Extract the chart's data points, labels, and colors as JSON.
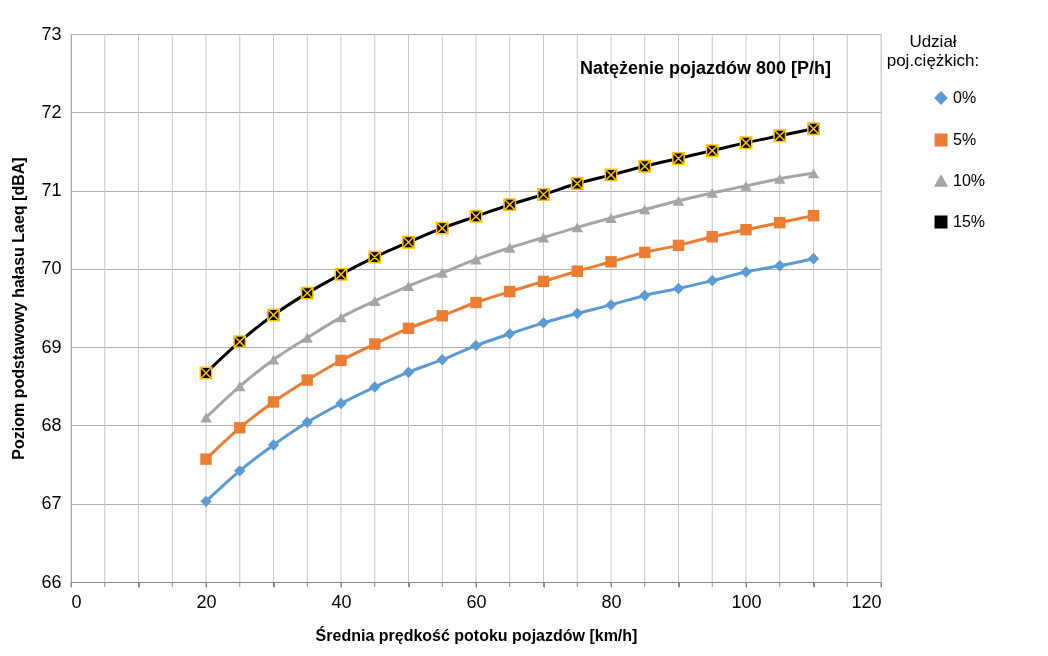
{
  "chart_data": {
    "type": "line",
    "title": "Natężenie pojazdów 800 [P/h]",
    "xlabel": "Średnia prędkość potoku pojazdów [km/h]",
    "ylabel": "Poziom podstawowy hałasu Laeq [dBA]",
    "legend_title": "Udział poj.ciężkich:",
    "legend": "right",
    "x": [
      20,
      25,
      30,
      35,
      40,
      45,
      50,
      55,
      60,
      65,
      70,
      75,
      80,
      85,
      90,
      95,
      100,
      105,
      110
    ],
    "series": [
      {
        "name": "0%",
        "color": "#5b9bd5",
        "marker": "diamond",
        "values": [
          67.03,
          67.42,
          67.75,
          68.04,
          68.28,
          68.49,
          68.68,
          68.84,
          69.02,
          69.17,
          69.31,
          69.43,
          69.54,
          69.66,
          69.75,
          69.85,
          69.96,
          70.04,
          70.13
        ]
      },
      {
        "name": "5%",
        "color": "#ed7d31",
        "marker": "square",
        "values": [
          67.57,
          67.97,
          68.3,
          68.58,
          68.83,
          69.04,
          69.24,
          69.4,
          69.57,
          69.71,
          69.84,
          69.97,
          70.09,
          70.21,
          70.3,
          70.41,
          70.5,
          70.59,
          70.68
        ]
      },
      {
        "name": "10%",
        "color": "#a5a5a5",
        "marker": "triangle",
        "values": [
          68.1,
          68.5,
          68.84,
          69.12,
          69.38,
          69.59,
          69.78,
          69.95,
          70.12,
          70.27,
          70.4,
          70.53,
          70.65,
          70.76,
          70.87,
          70.97,
          71.06,
          71.15,
          71.22
        ]
      },
      {
        "name": "15%",
        "color": "#000000",
        "marker": "cross",
        "values": [
          68.67,
          69.07,
          69.41,
          69.69,
          69.93,
          70.15,
          70.34,
          70.52,
          70.67,
          70.82,
          70.95,
          71.09,
          71.2,
          71.31,
          71.41,
          71.51,
          71.61,
          71.7,
          71.79
        ]
      }
    ],
    "xlim": [
      0,
      120
    ],
    "xticks": [
      0,
      {
        "value": 5,
        "label": null
      },
      {
        "value": 10,
        "label": null
      },
      {
        "value": 15,
        "label": null
      },
      20,
      {
        "value": 25,
        "label": null
      },
      {
        "value": 30,
        "label": null
      },
      {
        "value": 35,
        "label": null
      },
      40,
      {
        "value": 45,
        "label": null
      },
      {
        "value": 50,
        "label": null
      },
      {
        "value": 55,
        "label": null
      },
      60,
      {
        "value": 65,
        "label": null
      },
      {
        "value": 70,
        "label": null
      },
      {
        "value": 75,
        "label": null
      },
      80,
      {
        "value": 85,
        "label": null
      },
      {
        "value": 90,
        "label": null
      },
      {
        "value": 95,
        "label": null
      },
      100,
      {
        "value": 105,
        "label": null
      },
      {
        "value": 110,
        "label": null
      },
      {
        "value": 115,
        "label": null
      },
      120
    ],
    "ylim": [
      66,
      73
    ],
    "yticks": [
      66,
      67,
      68,
      69,
      70,
      71,
      72,
      73
    ],
    "grid": true,
    "line_style": "solid"
  }
}
